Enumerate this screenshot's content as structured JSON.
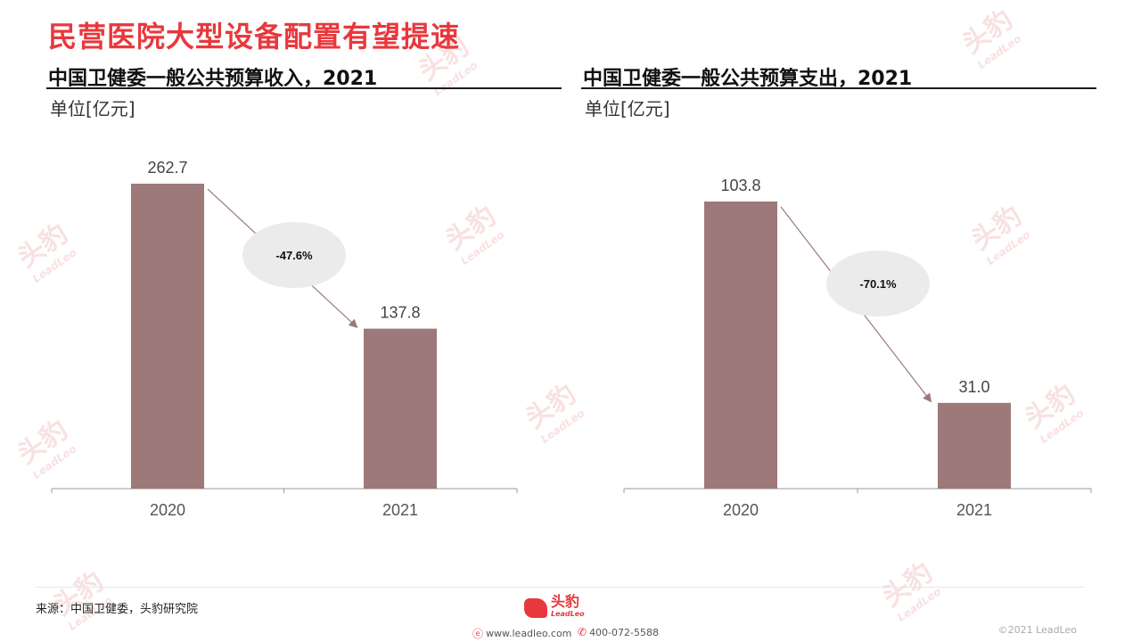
{
  "page": {
    "title": "民营医院大型设备配置有望提速",
    "source": "来源：中国卫健委，头豹研究院",
    "logo_text": "头豹",
    "logo_subtext": "LeadLeo",
    "website": "www.leadleo.com",
    "phone": "400-072-5588",
    "copyright": "©2021 LeadLeo",
    "watermark_text": "头豹",
    "watermark_subtext": "LeadLeo",
    "bar_color": "#9d7979",
    "title_color": "#e8383d"
  },
  "chart_data": [
    {
      "type": "bar",
      "title": "中国卫健委一般公共预算收入，2021",
      "unit_label": "单位[亿元]",
      "categories": [
        "2020",
        "2021"
      ],
      "values": [
        262.7,
        137.8
      ],
      "value_labels": [
        "262.7",
        "137.8"
      ],
      "change_label": "-47.6%",
      "grid": false
    },
    {
      "type": "bar",
      "title": "中国卫健委一般公共预算支出，2021",
      "unit_label": "单位[亿元]",
      "categories": [
        "2020",
        "2021"
      ],
      "values": [
        103.8,
        31.0
      ],
      "value_labels": [
        "103.8",
        "31.0"
      ],
      "change_label": "-70.1%",
      "grid": false
    }
  ]
}
